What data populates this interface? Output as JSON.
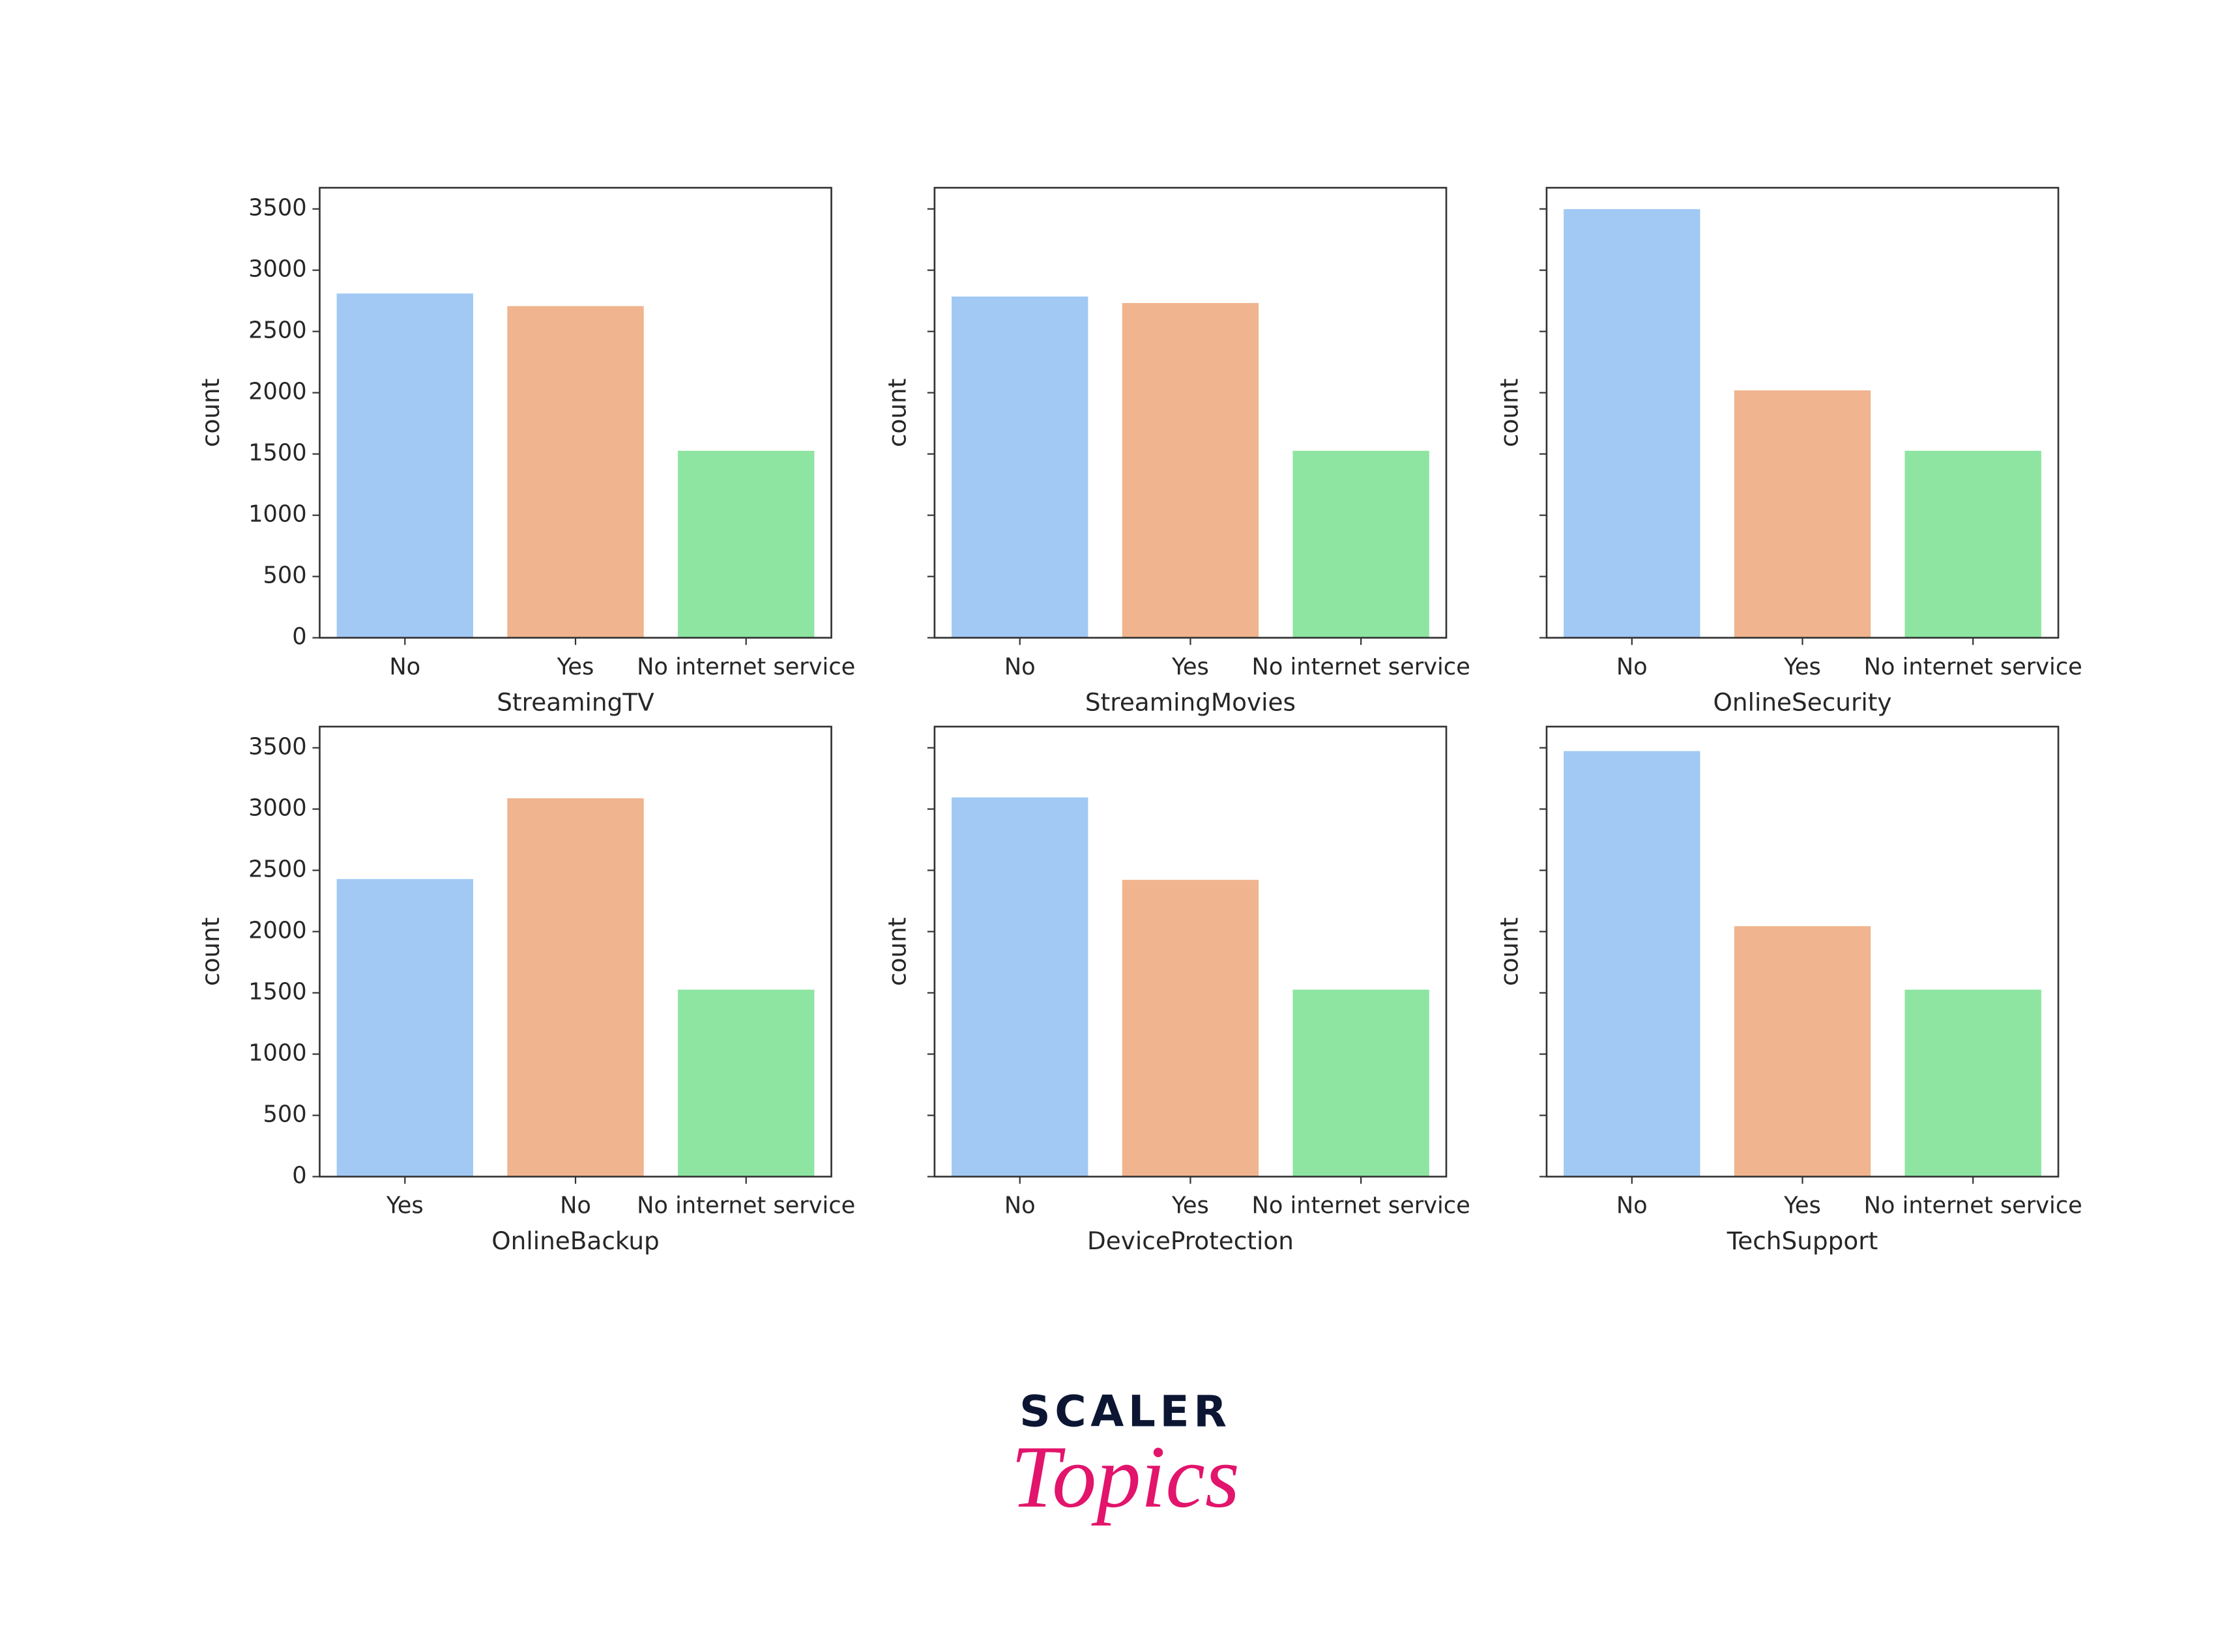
{
  "chart_data": [
    {
      "type": "bar",
      "xlabel": "StreamingTV",
      "ylabel": "count",
      "categories": [
        "No",
        "Yes",
        "No internet service"
      ],
      "values": [
        2810,
        2707,
        1526
      ],
      "colors": [
        "#a1c9f4",
        "#f0b48e",
        "#8de5a1"
      ],
      "ylim": [
        0,
        3673
      ],
      "yticks": [
        0,
        500,
        1000,
        1500,
        2000,
        2500,
        3000,
        3500
      ]
    },
    {
      "type": "bar",
      "xlabel": "StreamingMovies",
      "ylabel": "count",
      "categories": [
        "No",
        "Yes",
        "No internet service"
      ],
      "values": [
        2785,
        2732,
        1526
      ],
      "colors": [
        "#a1c9f4",
        "#f0b48e",
        "#8de5a1"
      ],
      "ylim": [
        0,
        3673
      ],
      "yticks": [
        0,
        500,
        1000,
        1500,
        2000,
        2500,
        3000,
        3500
      ]
    },
    {
      "type": "bar",
      "xlabel": "OnlineSecurity",
      "ylabel": "count",
      "categories": [
        "No",
        "Yes",
        "No internet service"
      ],
      "values": [
        3498,
        2019,
        1526
      ],
      "colors": [
        "#a1c9f4",
        "#f0b48e",
        "#8de5a1"
      ],
      "ylim": [
        0,
        3673
      ],
      "yticks": [
        0,
        500,
        1000,
        1500,
        2000,
        2500,
        3000,
        3500
      ]
    },
    {
      "type": "bar",
      "xlabel": "OnlineBackup",
      "ylabel": "count",
      "categories": [
        "Yes",
        "No",
        "No internet service"
      ],
      "values": [
        2429,
        3088,
        1526
      ],
      "colors": [
        "#a1c9f4",
        "#f0b48e",
        "#8de5a1"
      ],
      "ylim": [
        0,
        3673
      ],
      "yticks": [
        0,
        500,
        1000,
        1500,
        2000,
        2500,
        3000,
        3500
      ]
    },
    {
      "type": "bar",
      "xlabel": "DeviceProtection",
      "ylabel": "count",
      "categories": [
        "No",
        "Yes",
        "No internet service"
      ],
      "values": [
        3095,
        2422,
        1526
      ],
      "colors": [
        "#a1c9f4",
        "#f0b48e",
        "#8de5a1"
      ],
      "ylim": [
        0,
        3673
      ],
      "yticks": [
        0,
        500,
        1000,
        1500,
        2000,
        2500,
        3000,
        3500
      ]
    },
    {
      "type": "bar",
      "xlabel": "TechSupport",
      "ylabel": "count",
      "categories": [
        "No",
        "Yes",
        "No internet service"
      ],
      "values": [
        3473,
        2044,
        1526
      ],
      "colors": [
        "#a1c9f4",
        "#f0b48e",
        "#8de5a1"
      ],
      "ylim": [
        0,
        3673
      ],
      "yticks": [
        0,
        500,
        1000,
        1500,
        2000,
        2500,
        3000,
        3500
      ]
    }
  ],
  "logo": {
    "line1": "SCALER",
    "line2": "Topics"
  }
}
